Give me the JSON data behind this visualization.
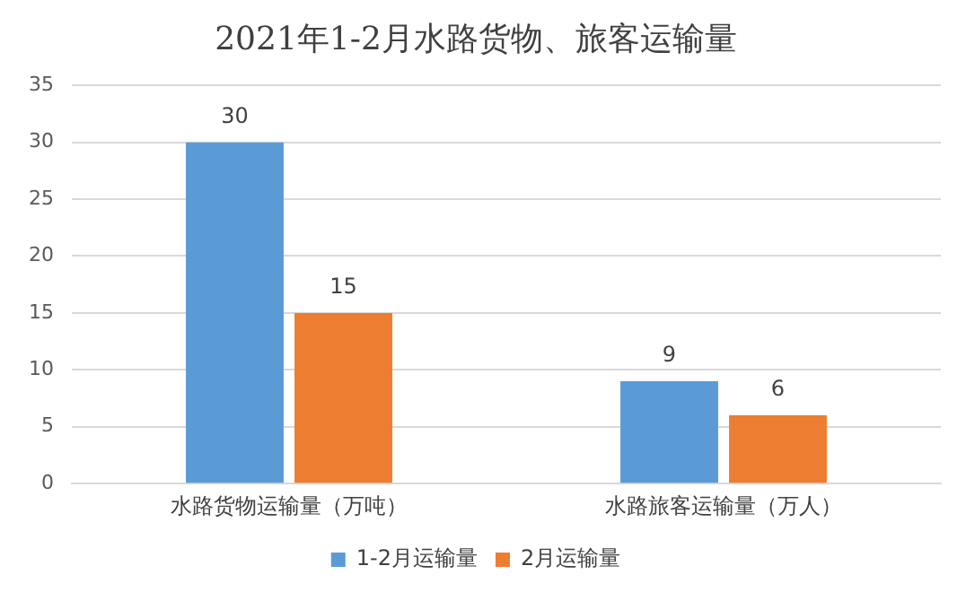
{
  "chart_data": {
    "type": "bar",
    "title": "2021年1-2月水路货物、旅客运输量",
    "categories": [
      "水路货物运输量（万吨）",
      "水路旅客运输量（万人）"
    ],
    "series": [
      {
        "name": "1-2月运输量",
        "color": "#5b9bd5",
        "values": [
          30,
          9
        ]
      },
      {
        "name": "2月运输量",
        "color": "#ed7d31",
        "values": [
          15,
          6
        ]
      }
    ],
    "ylim": [
      0,
      35
    ],
    "yticks": [
      0,
      5,
      10,
      15,
      20,
      25,
      30,
      35
    ],
    "grid": "y",
    "legend": "bottom",
    "data_labels": true
  }
}
